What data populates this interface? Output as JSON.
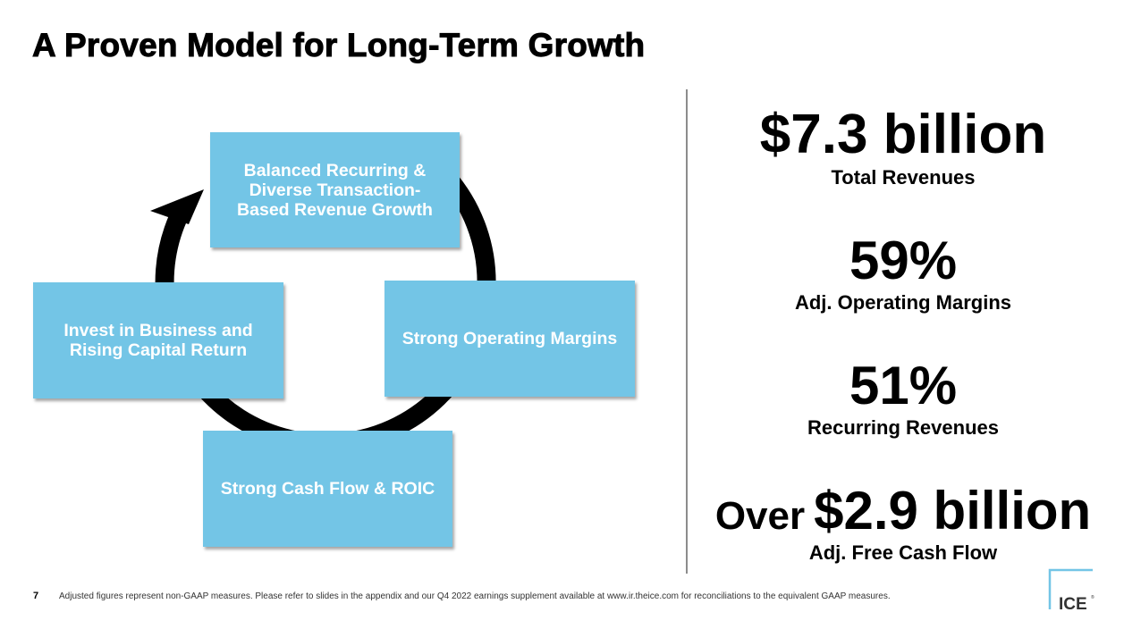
{
  "slide": {
    "title": "A Proven Model for Long-Term Growth",
    "page_number": "7",
    "footnote": "Adjusted figures represent non-GAAP measures. Please refer to slides in the appendix and our Q4 2022 earnings supplement available at www.ir.theice.com for reconciliations to the equivalent GAAP measures."
  },
  "cycle": {
    "top": "Balanced Recurring &\nDiverse Transaction-\nBased Revenue Growth",
    "right": "Strong Operating Margins",
    "bottom": "Strong Cash Flow & ROIC",
    "left": "Invest in Business and\nRising Capital Return"
  },
  "metrics": [
    {
      "value": "$7.3 billion",
      "label": "Total Revenues"
    },
    {
      "value": "59%",
      "label": "Adj. Operating Margins"
    },
    {
      "value": "51%",
      "label": "Recurring Revenues"
    },
    {
      "prefix": "Over",
      "value": "$2.9 billion",
      "label": "Adj. Free Cash Flow"
    }
  ],
  "logo": {
    "text": "ICE",
    "mark": "®",
    "color": "#73c5e6"
  },
  "colors": {
    "box_fill": "#73c5e6",
    "box_text": "#ffffff",
    "cycle_arrow": "#000000",
    "divider": "#8c8c8c"
  }
}
